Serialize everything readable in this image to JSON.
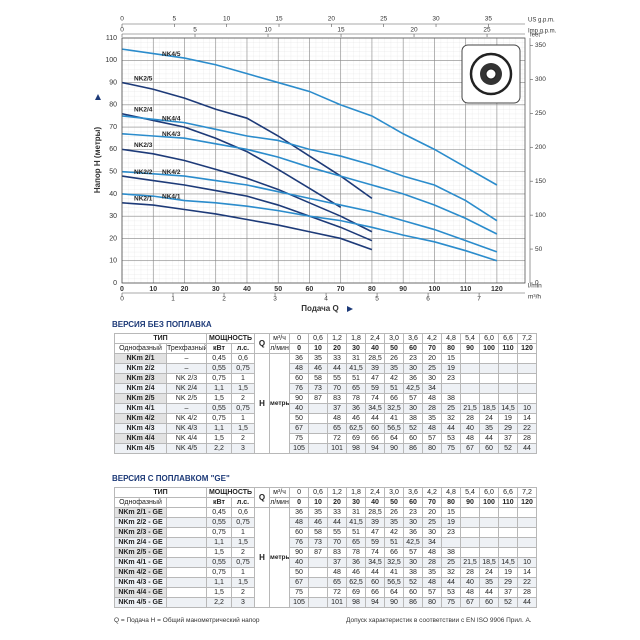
{
  "chart_data": {
    "type": "line",
    "y_label": "Напор H (метры)",
    "x_label": "Подача Q",
    "x_unit": "l/min",
    "x": [
      0,
      10,
      20,
      30,
      40,
      50,
      60,
      70,
      80,
      90,
      100,
      110,
      120
    ],
    "xlim": [
      0,
      129
    ],
    "xticks": [
      0,
      10,
      20,
      30,
      40,
      50,
      60,
      70,
      80,
      90,
      100,
      110,
      120
    ],
    "ylim": [
      0,
      110
    ],
    "yticks": [
      0,
      10,
      20,
      30,
      40,
      50,
      60,
      70,
      80,
      90,
      100,
      110
    ],
    "y2_unit": "feet",
    "y2lim": [
      0,
      361
    ],
    "y2ticks": [
      0,
      50,
      100,
      150,
      200,
      250,
      300,
      350
    ],
    "x2_unit": "US g.p.m.",
    "x2lim": [
      0,
      38.5
    ],
    "x2ticks": [
      0,
      5,
      10,
      15,
      20,
      25,
      30,
      35
    ],
    "x3_unit": "Imp g.p.m.",
    "x3lim": [
      0,
      27.6
    ],
    "x3ticks": [
      0,
      5,
      10,
      15,
      20,
      25
    ],
    "x4_unit": "m³/h",
    "x4lim": [
      0,
      7.9
    ],
    "x4ticks": [
      0,
      1,
      2,
      3,
      4,
      5,
      6,
      7
    ],
    "grid": true,
    "series": [
      {
        "name": "NK4/5",
        "color": "#2b8ccc",
        "values": [
          105,
          103,
          101,
          98,
          94,
          90,
          86,
          80,
          75,
          67,
          60,
          52,
          44
        ]
      },
      {
        "name": "NK2/5",
        "color": "#1d3a78",
        "values": [
          90,
          87,
          83,
          78,
          74,
          66,
          57,
          48,
          38,
          null,
          null,
          null,
          null
        ]
      },
      {
        "name": "NK2/4",
        "color": "#1d3a78",
        "values": [
          76,
          73,
          70,
          65,
          59,
          51,
          42.5,
          34,
          null,
          null,
          null,
          null,
          null
        ]
      },
      {
        "name": "NK4/4",
        "color": "#2b8ccc",
        "values": [
          75,
          73.5,
          72,
          69,
          66,
          64,
          60,
          57,
          53,
          48,
          44,
          37,
          28
        ]
      },
      {
        "name": "NK4/3",
        "color": "#2b8ccc",
        "values": [
          67,
          66,
          65,
          62.5,
          60,
          56.5,
          52,
          48,
          44,
          40,
          35,
          29,
          22
        ]
      },
      {
        "name": "NK2/3",
        "color": "#1d3a78",
        "values": [
          60,
          58,
          55,
          51,
          47,
          42,
          36,
          30,
          23,
          null,
          null,
          null,
          null
        ]
      },
      {
        "name": "NK4/2",
        "color": "#2b8ccc",
        "values": [
          50,
          49,
          48,
          46,
          44,
          41,
          38,
          35,
          32,
          28,
          24,
          19,
          14
        ]
      },
      {
        "name": "NK2/2",
        "color": "#1d3a78",
        "values": [
          48,
          46,
          44,
          41.5,
          39,
          35,
          30,
          25,
          19,
          null,
          null,
          null,
          null
        ]
      },
      {
        "name": "NK4/1",
        "color": "#2b8ccc",
        "values": [
          40,
          39,
          37,
          36,
          34.5,
          32.5,
          30,
          28,
          25,
          21.5,
          18.5,
          14.5,
          10
        ]
      },
      {
        "name": "NK2/1",
        "color": "#1d3a78",
        "values": [
          36,
          35,
          33,
          31,
          28.5,
          26,
          23,
          20,
          15,
          null,
          null,
          null,
          null
        ]
      }
    ]
  },
  "table1": {
    "title": "ВЕРСИЯ БЕЗ ПОПЛАВКА",
    "head": {
      "type": "ТИП",
      "power": "МОЩНОСТЬ",
      "q": "Q",
      "q_unit1": "м³/ч",
      "q_unit2": "л/мин",
      "single": "Однофазный",
      "three": "Трехфазный",
      "kw": "кВт",
      "hp": "л.с.",
      "h": "H",
      "h_unit": "метры"
    },
    "flow_m3h": [
      "0",
      "0,6",
      "1,2",
      "1,8",
      "2,4",
      "3,0",
      "3,6",
      "4,2",
      "4,8",
      "5,4",
      "6,0",
      "6,6",
      "7,2"
    ],
    "flow_lmin": [
      "0",
      "10",
      "20",
      "30",
      "40",
      "50",
      "60",
      "70",
      "80",
      "90",
      "100",
      "110",
      "120"
    ],
    "rows": [
      [
        "NKm 2/1",
        "–",
        "0,45",
        "0,6",
        "36",
        "35",
        "33",
        "31",
        "28,5",
        "26",
        "23",
        "20",
        "15",
        null,
        null,
        null,
        null
      ],
      [
        "NKm 2/2",
        "–",
        "0,55",
        "0,75",
        "48",
        "46",
        "44",
        "41,5",
        "39",
        "35",
        "30",
        "25",
        "19",
        null,
        null,
        null,
        null
      ],
      [
        "NKm 2/3",
        "NK 2/3",
        "0,75",
        "1",
        "60",
        "58",
        "55",
        "51",
        "47",
        "42",
        "36",
        "30",
        "23",
        null,
        null,
        null,
        null
      ],
      [
        "NKm 2/4",
        "NK 2/4",
        "1,1",
        "1,5",
        "76",
        "73",
        "70",
        "65",
        "59",
        "51",
        "42,5",
        "34",
        null,
        null,
        null,
        null,
        null
      ],
      [
        "NKm 2/5",
        "NK 2/5",
        "1,5",
        "2",
        "90",
        "87",
        "83",
        "78",
        "74",
        "66",
        "57",
        "48",
        "38",
        null,
        null,
        null,
        null
      ],
      [
        "NKm 4/1",
        "–",
        "0,55",
        "0,75",
        "40",
        null,
        "37",
        "36",
        "34,5",
        "32,5",
        "30",
        "28",
        "25",
        "21,5",
        "18,5",
        "14,5",
        "10"
      ],
      [
        "NKm 4/2",
        "NK 4/2",
        "0,75",
        "1",
        "50",
        null,
        "48",
        "46",
        "44",
        "41",
        "38",
        "35",
        "32",
        "28",
        "24",
        "19",
        "14"
      ],
      [
        "NKm 4/3",
        "NK 4/3",
        "1,1",
        "1,5",
        "67",
        null,
        "65",
        "62,5",
        "60",
        "56,5",
        "52",
        "48",
        "44",
        "40",
        "35",
        "29",
        "22"
      ],
      [
        "NKm 4/4",
        "NK 4/4",
        "1,5",
        "2",
        "75",
        null,
        "72",
        "69",
        "66",
        "64",
        "60",
        "57",
        "53",
        "48",
        "44",
        "37",
        "28"
      ],
      [
        "NKm 4/5",
        "NK 4/5",
        "2,2",
        "3",
        "105",
        null,
        "101",
        "98",
        "94",
        "90",
        "86",
        "80",
        "75",
        "67",
        "60",
        "52",
        "44"
      ]
    ]
  },
  "table2": {
    "title": "ВЕРСИЯ С ПОПЛАВКОМ \"GE\"",
    "head": {
      "type": "ТИП",
      "power": "МОЩНОСТЬ",
      "q": "Q",
      "q_unit1": "м³/ч",
      "q_unit2": "л/мин",
      "single": "Однофазный",
      "kw": "кВт",
      "hp": "л.с.",
      "h": "H",
      "h_unit": "метры"
    },
    "flow_m3h": [
      "0",
      "0,6",
      "1,2",
      "1,8",
      "2,4",
      "3,0",
      "3,6",
      "4,2",
      "4,8",
      "5,4",
      "6,0",
      "6,6",
      "7,2"
    ],
    "flow_lmin": [
      "0",
      "10",
      "20",
      "30",
      "40",
      "50",
      "60",
      "70",
      "80",
      "90",
      "100",
      "110",
      "120"
    ],
    "rows": [
      [
        "NKm 2/1 - GE",
        null,
        "0,45",
        "0,6",
        "36",
        "35",
        "33",
        "31",
        "28,5",
        "26",
        "23",
        "20",
        "15",
        null,
        null,
        null,
        null
      ],
      [
        "NKm 2/2 - GE",
        null,
        "0,55",
        "0,75",
        "48",
        "46",
        "44",
        "41,5",
        "39",
        "35",
        "30",
        "25",
        "19",
        null,
        null,
        null,
        null
      ],
      [
        "NKm 2/3 - GE",
        null,
        "0,75",
        "1",
        "60",
        "58",
        "55",
        "51",
        "47",
        "42",
        "36",
        "30",
        "23",
        null,
        null,
        null,
        null
      ],
      [
        "NKm 2/4 - GE",
        null,
        "1,1",
        "1,5",
        "76",
        "73",
        "70",
        "65",
        "59",
        "51",
        "42,5",
        "34",
        null,
        null,
        null,
        null,
        null
      ],
      [
        "NKm 2/5 - GE",
        null,
        "1,5",
        "2",
        "90",
        "87",
        "83",
        "78",
        "74",
        "66",
        "57",
        "48",
        "38",
        null,
        null,
        null,
        null
      ],
      [
        "NKm 4/1 - GE",
        null,
        "0,55",
        "0,75",
        "40",
        null,
        "37",
        "36",
        "34,5",
        "32,5",
        "30",
        "28",
        "25",
        "21,5",
        "18,5",
        "14,5",
        "10"
      ],
      [
        "NKm 4/2 - GE",
        null,
        "0,75",
        "1",
        "50",
        null,
        "48",
        "46",
        "44",
        "41",
        "38",
        "35",
        "32",
        "28",
        "24",
        "19",
        "14"
      ],
      [
        "NKm 4/3 - GE",
        null,
        "1,1",
        "1,5",
        "67",
        null,
        "65",
        "62,5",
        "60",
        "56,5",
        "52",
        "48",
        "44",
        "40",
        "35",
        "29",
        "22"
      ],
      [
        "NKm 4/4 - GE",
        null,
        "1,5",
        "2",
        "75",
        null,
        "72",
        "69",
        "66",
        "64",
        "60",
        "57",
        "53",
        "48",
        "44",
        "37",
        "28"
      ],
      [
        "NKm 4/5 - GE",
        null,
        "2,2",
        "3",
        "105",
        null,
        "101",
        "98",
        "94",
        "90",
        "86",
        "80",
        "75",
        "67",
        "60",
        "52",
        "44"
      ]
    ]
  },
  "footer": {
    "left": "Q = Подача  H = Общий манометрический напор",
    "right": "Допуск характеристик в соответствии с EN ISO 9906 Прил. A."
  }
}
